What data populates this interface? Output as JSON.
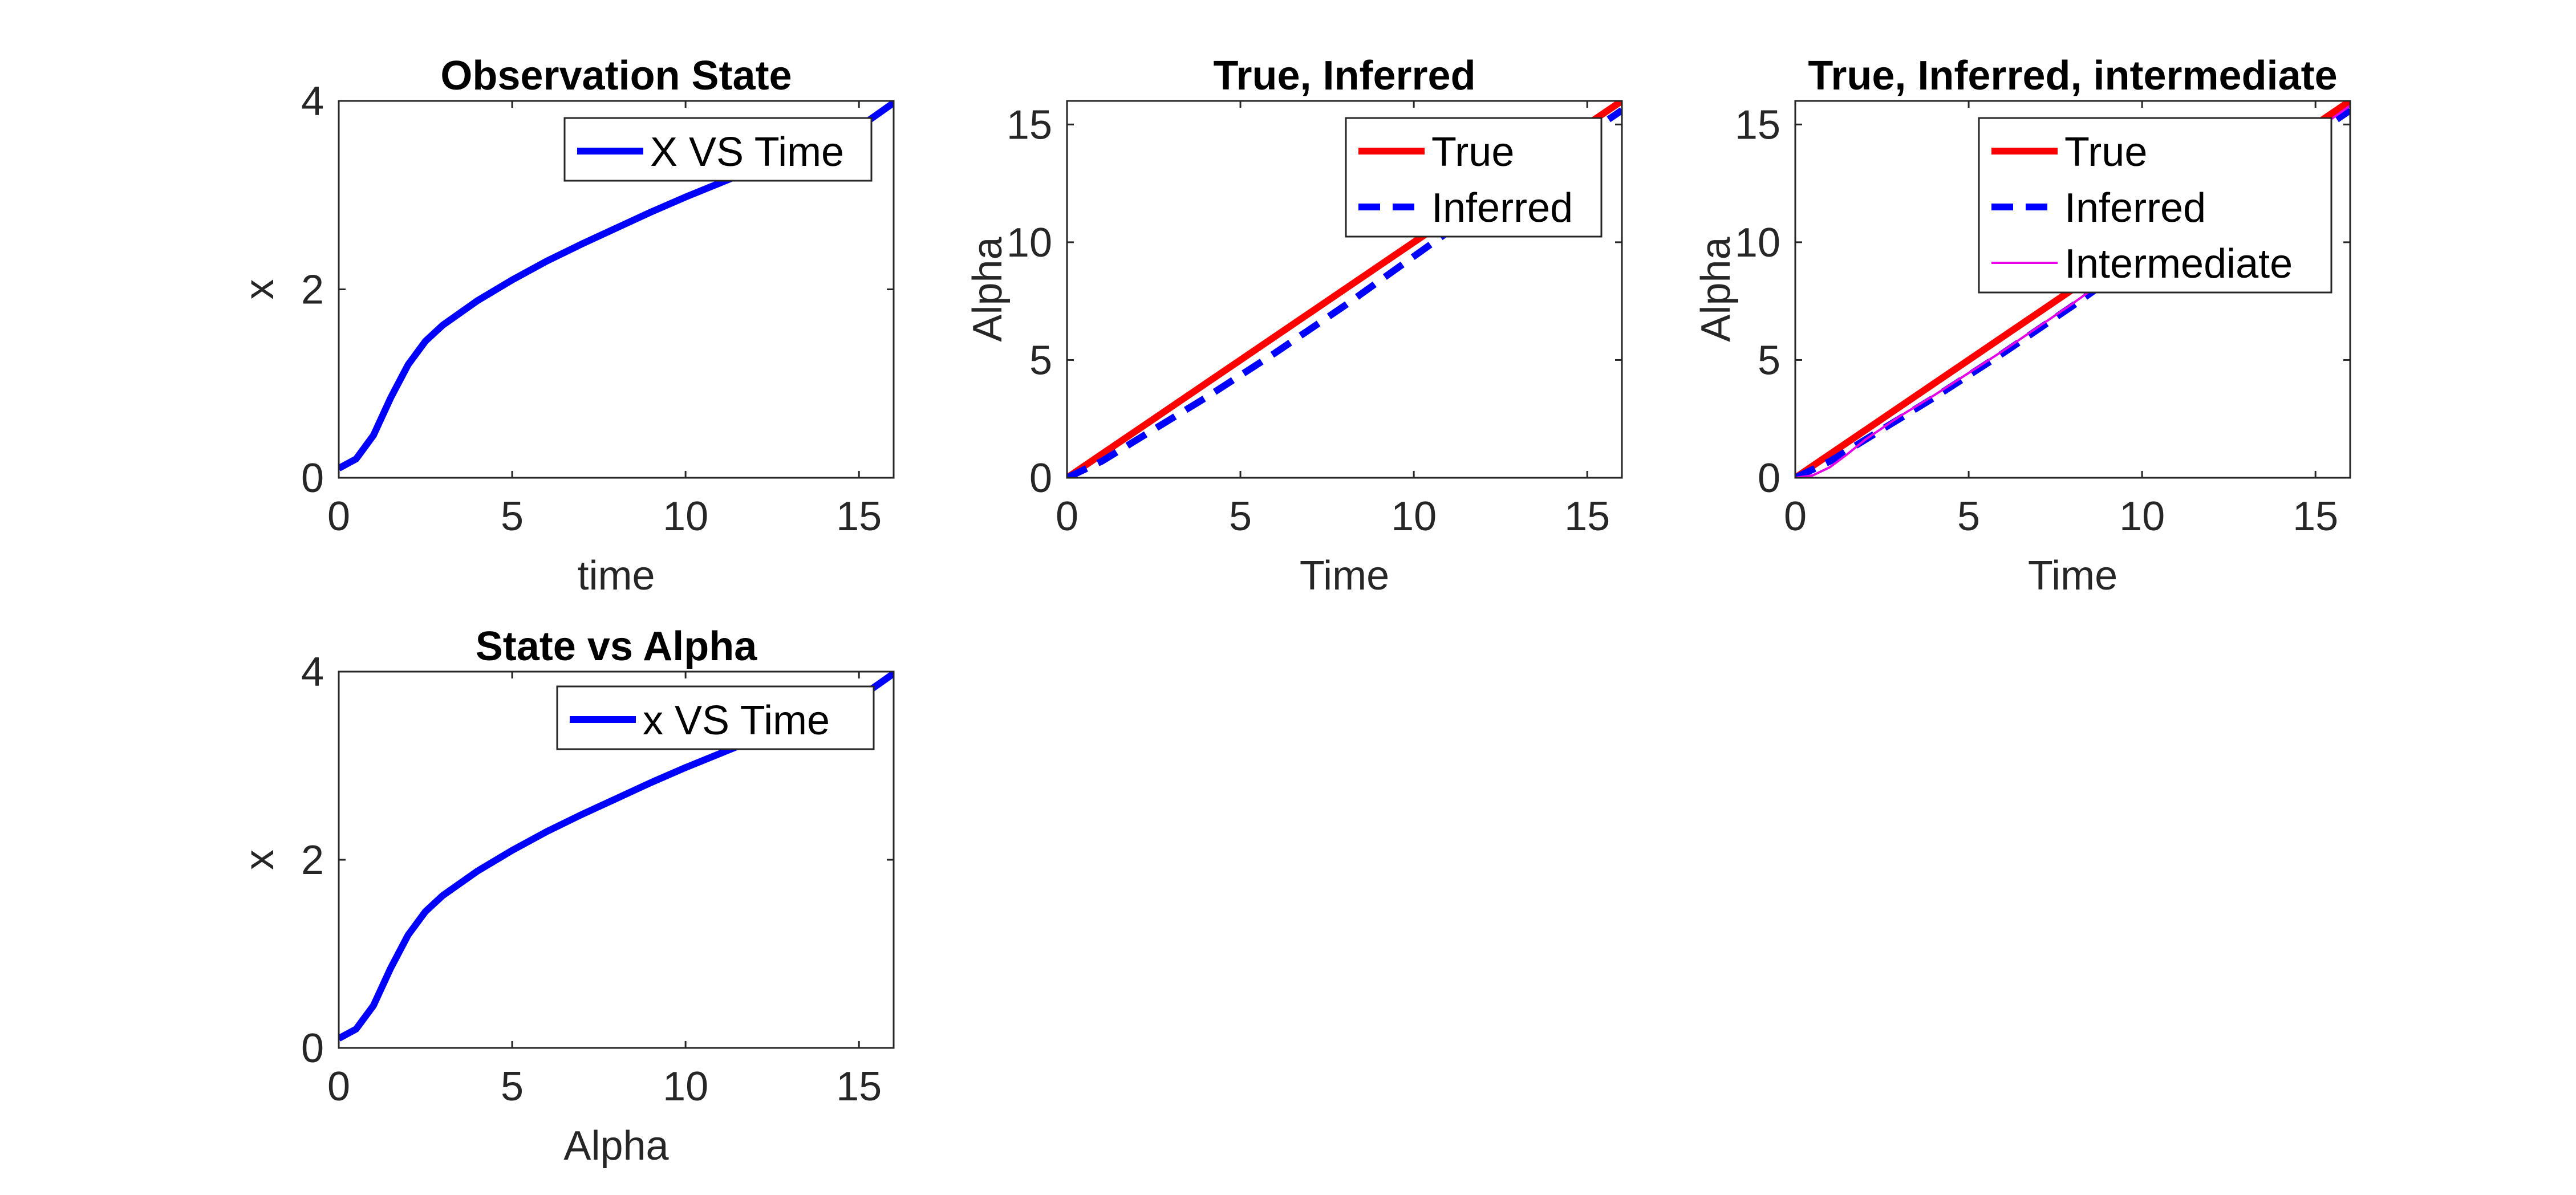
{
  "chart_data": [
    {
      "type": "line",
      "title": "Observation State",
      "xlabel": "time",
      "ylabel": "x",
      "xlim": [
        0,
        16
      ],
      "ylim": [
        0,
        4
      ],
      "xticks": [
        0,
        5,
        10,
        15
      ],
      "yticks": [
        0,
        2,
        4
      ],
      "grid": false,
      "legend_position": "top-right",
      "series": [
        {
          "name": "X VS Time",
          "color": "#0000ff",
          "style": "solid",
          "x": [
            0,
            0.5,
            1,
            1.5,
            2,
            2.5,
            3,
            4,
            5,
            6,
            7,
            8,
            9,
            10,
            11,
            12,
            13,
            14,
            15,
            16
          ],
          "y": [
            0.1,
            0.2,
            0.45,
            0.85,
            1.2,
            1.45,
            1.62,
            1.88,
            2.1,
            2.3,
            2.48,
            2.65,
            2.82,
            2.98,
            3.13,
            3.28,
            3.43,
            3.57,
            3.72,
            3.98
          ]
        }
      ]
    },
    {
      "type": "line",
      "title": "True, Inferred",
      "xlabel": "Time",
      "ylabel": "Alpha",
      "xlim": [
        0,
        16
      ],
      "ylim": [
        0,
        16
      ],
      "xticks": [
        0,
        5,
        10,
        15
      ],
      "yticks": [
        0,
        5,
        10,
        15
      ],
      "grid": false,
      "legend_position": "top-right",
      "series": [
        {
          "name": "True",
          "color": "#ff0000",
          "style": "solid",
          "x": [
            0,
            16
          ],
          "y": [
            0,
            16
          ]
        },
        {
          "name": "Inferred",
          "color": "#0000ff",
          "style": "dashed",
          "x": [
            0,
            1,
            2,
            3,
            4,
            6,
            8,
            10,
            12,
            14,
            16
          ],
          "y": [
            0,
            0.7,
            1.6,
            2.5,
            3.4,
            5.3,
            7.3,
            9.4,
            11.5,
            13.6,
            15.6
          ]
        }
      ]
    },
    {
      "type": "line",
      "title": "True, Inferred, intermediate",
      "xlabel": "Time",
      "ylabel": "Alpha",
      "xlim": [
        0,
        16
      ],
      "ylim": [
        0,
        16
      ],
      "xticks": [
        0,
        5,
        10,
        15
      ],
      "yticks": [
        0,
        5,
        10,
        15
      ],
      "grid": false,
      "legend_position": "top-right",
      "series": [
        {
          "name": "True",
          "color": "#ff0000",
          "style": "solid",
          "x": [
            0,
            16
          ],
          "y": [
            0,
            16
          ]
        },
        {
          "name": "Inferred",
          "color": "#0000ff",
          "style": "dashed",
          "x": [
            0,
            1,
            2,
            3,
            4,
            6,
            8,
            10,
            12,
            14,
            16
          ],
          "y": [
            0,
            0.7,
            1.6,
            2.5,
            3.4,
            5.3,
            7.3,
            9.4,
            11.5,
            13.6,
            15.6
          ]
        },
        {
          "name": "Intermediate",
          "color": "#e600e6",
          "style": "solid-thin",
          "x": [
            0,
            0.5,
            1,
            1.5,
            2,
            2.5,
            3,
            4,
            6,
            8,
            10,
            12,
            14,
            16
          ],
          "y": [
            0,
            0.1,
            0.45,
            1.0,
            1.6,
            2.1,
            2.6,
            3.5,
            5.4,
            7.4,
            9.5,
            11.6,
            13.7,
            15.8
          ]
        }
      ]
    },
    {
      "type": "line",
      "title": "State vs Alpha",
      "xlabel": "Alpha",
      "ylabel": "x",
      "xlim": [
        0,
        16
      ],
      "ylim": [
        0,
        4
      ],
      "xticks": [
        0,
        5,
        10,
        15
      ],
      "yticks": [
        0,
        2,
        4
      ],
      "grid": false,
      "legend_position": "top-right",
      "series": [
        {
          "name": "x VS Time",
          "color": "#0000ff",
          "style": "solid",
          "x": [
            0,
            0.5,
            1,
            1.5,
            2,
            2.5,
            3,
            4,
            5,
            6,
            7,
            8,
            9,
            10,
            11,
            12,
            13,
            14,
            15,
            16
          ],
          "y": [
            0.1,
            0.2,
            0.45,
            0.85,
            1.2,
            1.45,
            1.62,
            1.88,
            2.1,
            2.3,
            2.48,
            2.65,
            2.82,
            2.98,
            3.13,
            3.28,
            3.43,
            3.57,
            3.72,
            3.98
          ]
        }
      ]
    }
  ]
}
